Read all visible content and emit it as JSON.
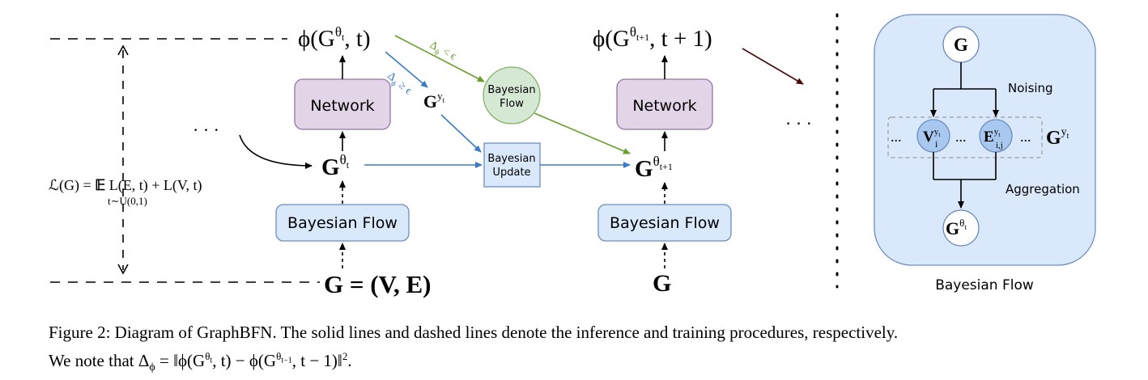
{
  "labels": {
    "network": "Network",
    "bayesian_flow": "Bayesian Flow",
    "bayesian_flow_circle_line1": "Bayesian",
    "bayesian_flow_circle_line2": "Flow",
    "bayesian_update_line1": "Bayesian",
    "bayesian_update_line2": "Update",
    "noising": "Noising",
    "aggregation": "Aggregation",
    "panel_title": "Bayesian Flow",
    "ellipsis": "· · ·",
    "dots": "..."
  },
  "math": {
    "phi_t_left": "ϕ(G",
    "phi_t_sup": "θ",
    "phi_t_sub": "t",
    "phi_t_right": ", t)",
    "phi_t1_left": "ϕ(G",
    "phi_t1_sup": "θ",
    "phi_t1_sub": "t+1",
    "phi_t1_right": ", t + 1)",
    "g_theta_t_base": "G",
    "g_theta_t_sup": "θ",
    "g_theta_t_sub": "t",
    "g_theta_t1_base": "G",
    "g_theta_t1_sup": "θ",
    "g_theta_t1_sub": "t+1",
    "g_yt_base": "G",
    "g_yt_sup": "y",
    "g_yt_sub": "t",
    "g_ve": "G = (V, E)",
    "g_bold": "G",
    "delta_ge_sym": "Δ",
    "delta_ge_sub": "ϕ",
    "delta_ge_rel": " ≥ ϵ",
    "delta_lt_sym": "Δ",
    "delta_lt_sub": "ϕ",
    "delta_lt_rel": " < ϵ",
    "loss_lhs": "ℒ(G) = ",
    "loss_expect": "𝔼",
    "loss_under": "t∼U(0,1)",
    "loss_rhs": " L(E, t) + L(V, t)",
    "panel_g": "G",
    "panel_v": "V",
    "panel_v_sup": "y",
    "panel_v_supsub": "t",
    "panel_v_sub": "i",
    "panel_e": "E",
    "panel_e_sup": "y",
    "panel_e_supsub": "t",
    "panel_e_sub": "i,j",
    "panel_gyt": "G",
    "panel_gyt_sup": "y",
    "panel_gyt_supsub": "t",
    "panel_gtheta": "G",
    "panel_gtheta_sup": "θ",
    "panel_gtheta_supsub": "t"
  },
  "caption": {
    "line1": "Figure 2: Diagram of GraphBFN. The solid lines and dashed lines denote the inference and training procedures, respectively.",
    "line2_prefix": "We note that Δ",
    "line2_sub1": "ϕ",
    "line2_mid1": " = ‖ϕ(G",
    "line2_sup1": "θ",
    "line2_sup1_sub": "t",
    "line2_mid2": ", t) − ϕ(G",
    "line2_sup2": "θ",
    "line2_sup2_sub": "t−1",
    "line2_mid3": ", t − 1)‖",
    "line2_sup3": "2",
    "line2_end": "."
  },
  "colors": {
    "network_fill": "#e1d5e7",
    "network_stroke": "#9673a6",
    "flow_fill": "#dae8fc",
    "flow_stroke": "#6c8ebf",
    "green_fill": "#d5e8d4",
    "green_stroke": "#82b366",
    "blue_arrow": "#3a7bc8",
    "green_arrow": "#6a9e2a",
    "dark_red_arrow": "#4a0a0a",
    "node_blue": "#a9c8f0"
  }
}
